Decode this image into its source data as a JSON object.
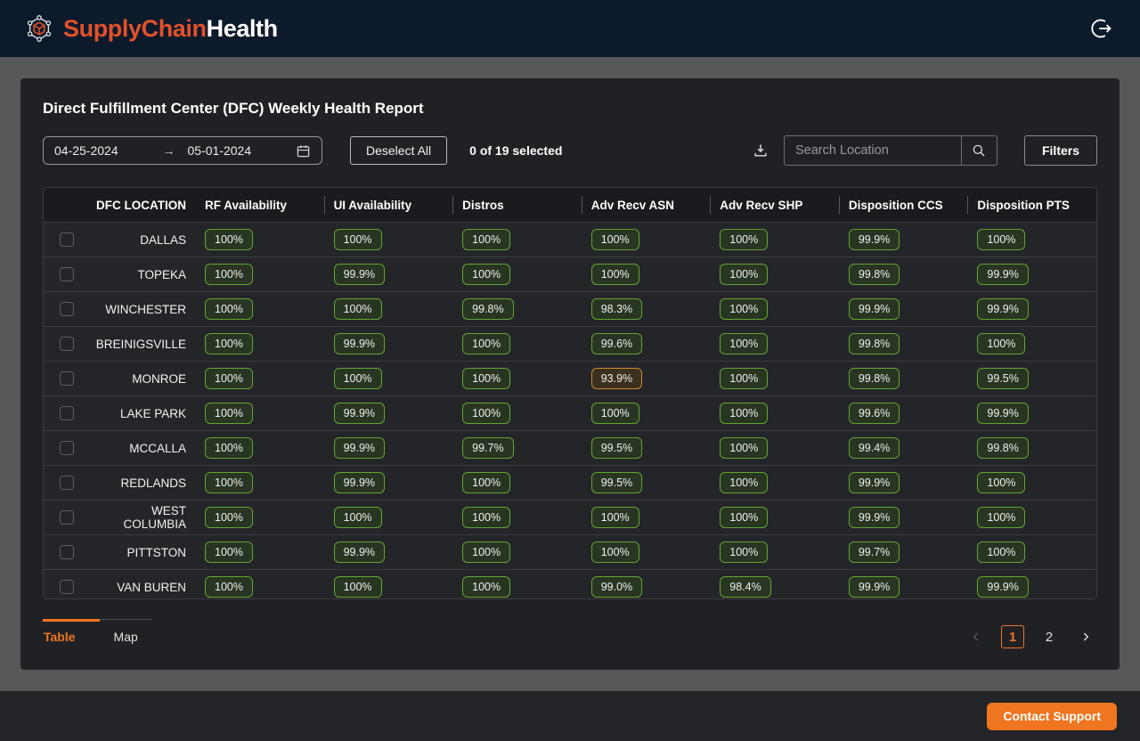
{
  "colors": {
    "accent_orange": "#ef7520",
    "brand_orange": "#e2512a",
    "ok_green": "#62a532",
    "warn_orange": "#cf8a2e",
    "header_navy": "#0c1a2b"
  },
  "header": {
    "brand_part1": "SupplyChain",
    "brand_part2": "Health"
  },
  "report": {
    "title": "Direct Fulfillment Center (DFC) Weekly Health Report",
    "date_start": "04-25-2024",
    "date_end": "05-01-2024",
    "deselect_all_label": "Deselect All",
    "selected_text": "0 of 19 selected",
    "search_placeholder": "Search Location",
    "filters_label": "Filters"
  },
  "table": {
    "location_header": "DFC LOCATION",
    "metric_headers": [
      "RF Availability",
      "UI Availability",
      "Distros",
      "Adv Recv ASN",
      "Adv Recv SHP",
      "Disposition CCS",
      "Disposition PTS"
    ],
    "rows": [
      {
        "location": "DALLAS",
        "values": [
          "100%",
          "100%",
          "100%",
          "100%",
          "100%",
          "99.9%",
          "100%"
        ],
        "warn_indices": []
      },
      {
        "location": "TOPEKA",
        "values": [
          "100%",
          "99.9%",
          "100%",
          "100%",
          "100%",
          "99.8%",
          "99.9%"
        ],
        "warn_indices": []
      },
      {
        "location": "WINCHESTER",
        "values": [
          "100%",
          "100%",
          "99.8%",
          "98.3%",
          "100%",
          "99.9%",
          "99.9%"
        ],
        "warn_indices": []
      },
      {
        "location": "BREINIGSVILLE",
        "values": [
          "100%",
          "99.9%",
          "100%",
          "99.6%",
          "100%",
          "99.8%",
          "100%"
        ],
        "warn_indices": []
      },
      {
        "location": "MONROE",
        "values": [
          "100%",
          "100%",
          "100%",
          "93.9%",
          "100%",
          "99.8%",
          "99.5%"
        ],
        "warn_indices": [
          3
        ]
      },
      {
        "location": "LAKE PARK",
        "values": [
          "100%",
          "99.9%",
          "100%",
          "100%",
          "100%",
          "99.6%",
          "99.9%"
        ],
        "warn_indices": []
      },
      {
        "location": "MCCALLA",
        "values": [
          "100%",
          "99.9%",
          "99.7%",
          "99.5%",
          "100%",
          "99.4%",
          "99.8%"
        ],
        "warn_indices": []
      },
      {
        "location": "REDLANDS",
        "values": [
          "100%",
          "99.9%",
          "100%",
          "99.5%",
          "100%",
          "99.9%",
          "100%"
        ],
        "warn_indices": []
      },
      {
        "location": "WEST COLUMBIA",
        "values": [
          "100%",
          "100%",
          "100%",
          "100%",
          "100%",
          "99.9%",
          "100%"
        ],
        "warn_indices": []
      },
      {
        "location": "PITTSTON",
        "values": [
          "100%",
          "99.9%",
          "100%",
          "100%",
          "100%",
          "99.7%",
          "100%"
        ],
        "warn_indices": []
      },
      {
        "location": "VAN BUREN",
        "values": [
          "100%",
          "100%",
          "100%",
          "99.0%",
          "98.4%",
          "99.9%",
          "99.9%"
        ],
        "warn_indices": []
      }
    ]
  },
  "footer": {
    "tabs": [
      {
        "label": "Table",
        "active": true
      },
      {
        "label": "Map",
        "active": false
      }
    ],
    "pagination": {
      "current": "1",
      "pages": [
        "1",
        "2"
      ]
    }
  },
  "support": {
    "label": "Contact Support"
  }
}
